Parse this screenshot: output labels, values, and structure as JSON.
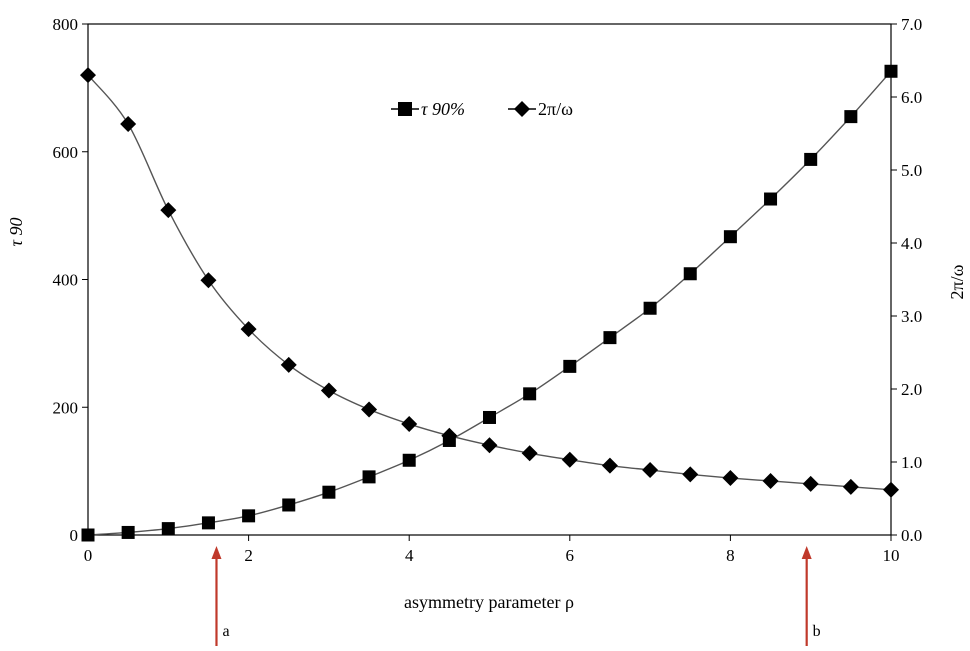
{
  "chart_data": {
    "type": "line",
    "xlabel": "asymmetry parameter ρ",
    "ylabel_left": "τ 90",
    "ylabel_right": "2π/ω",
    "x_ticks": [
      "0",
      "2",
      "4",
      "6",
      "8",
      "10"
    ],
    "y_left_ticks": [
      "0",
      "200",
      "400",
      "600",
      "800"
    ],
    "y_right_ticks": [
      "0.0",
      "1.0",
      "2.0",
      "3.0",
      "4.0",
      "5.0",
      "6.0",
      "7.0"
    ],
    "xlim": [
      0,
      10
    ],
    "ylim_left": [
      0,
      800
    ],
    "ylim_right": [
      0,
      7
    ],
    "grid": false,
    "legend_position": "top-center",
    "x": [
      0,
      0.5,
      1,
      1.5,
      2,
      2.5,
      3,
      3.5,
      4,
      4.5,
      5,
      5.5,
      6,
      6.5,
      7,
      7.5,
      8,
      8.5,
      9,
      9.5,
      10
    ],
    "series": [
      {
        "name": "τ 90%",
        "axis": "left",
        "marker": "square",
        "values": [
          0,
          4,
          10,
          19,
          30,
          47,
          67,
          91,
          117,
          148,
          184,
          221,
          264,
          309,
          355,
          409,
          467,
          526,
          588,
          655,
          726
        ]
      },
      {
        "name": "2π/ω",
        "axis": "right",
        "marker": "diamond",
        "values": [
          6.3,
          5.63,
          4.45,
          3.49,
          2.82,
          2.33,
          1.98,
          1.72,
          1.52,
          1.36,
          1.23,
          1.12,
          1.03,
          0.95,
          0.89,
          0.83,
          0.78,
          0.74,
          0.7,
          0.66,
          0.62
        ]
      }
    ],
    "annotations": [
      {
        "label": "a",
        "x": 1.6,
        "color": "#c0392b"
      },
      {
        "label": "b",
        "x": 8.95,
        "color": "#c0392b"
      }
    ],
    "colors": {
      "line": "#555555",
      "marker": "#000000",
      "arrow": "#c0392b"
    }
  }
}
